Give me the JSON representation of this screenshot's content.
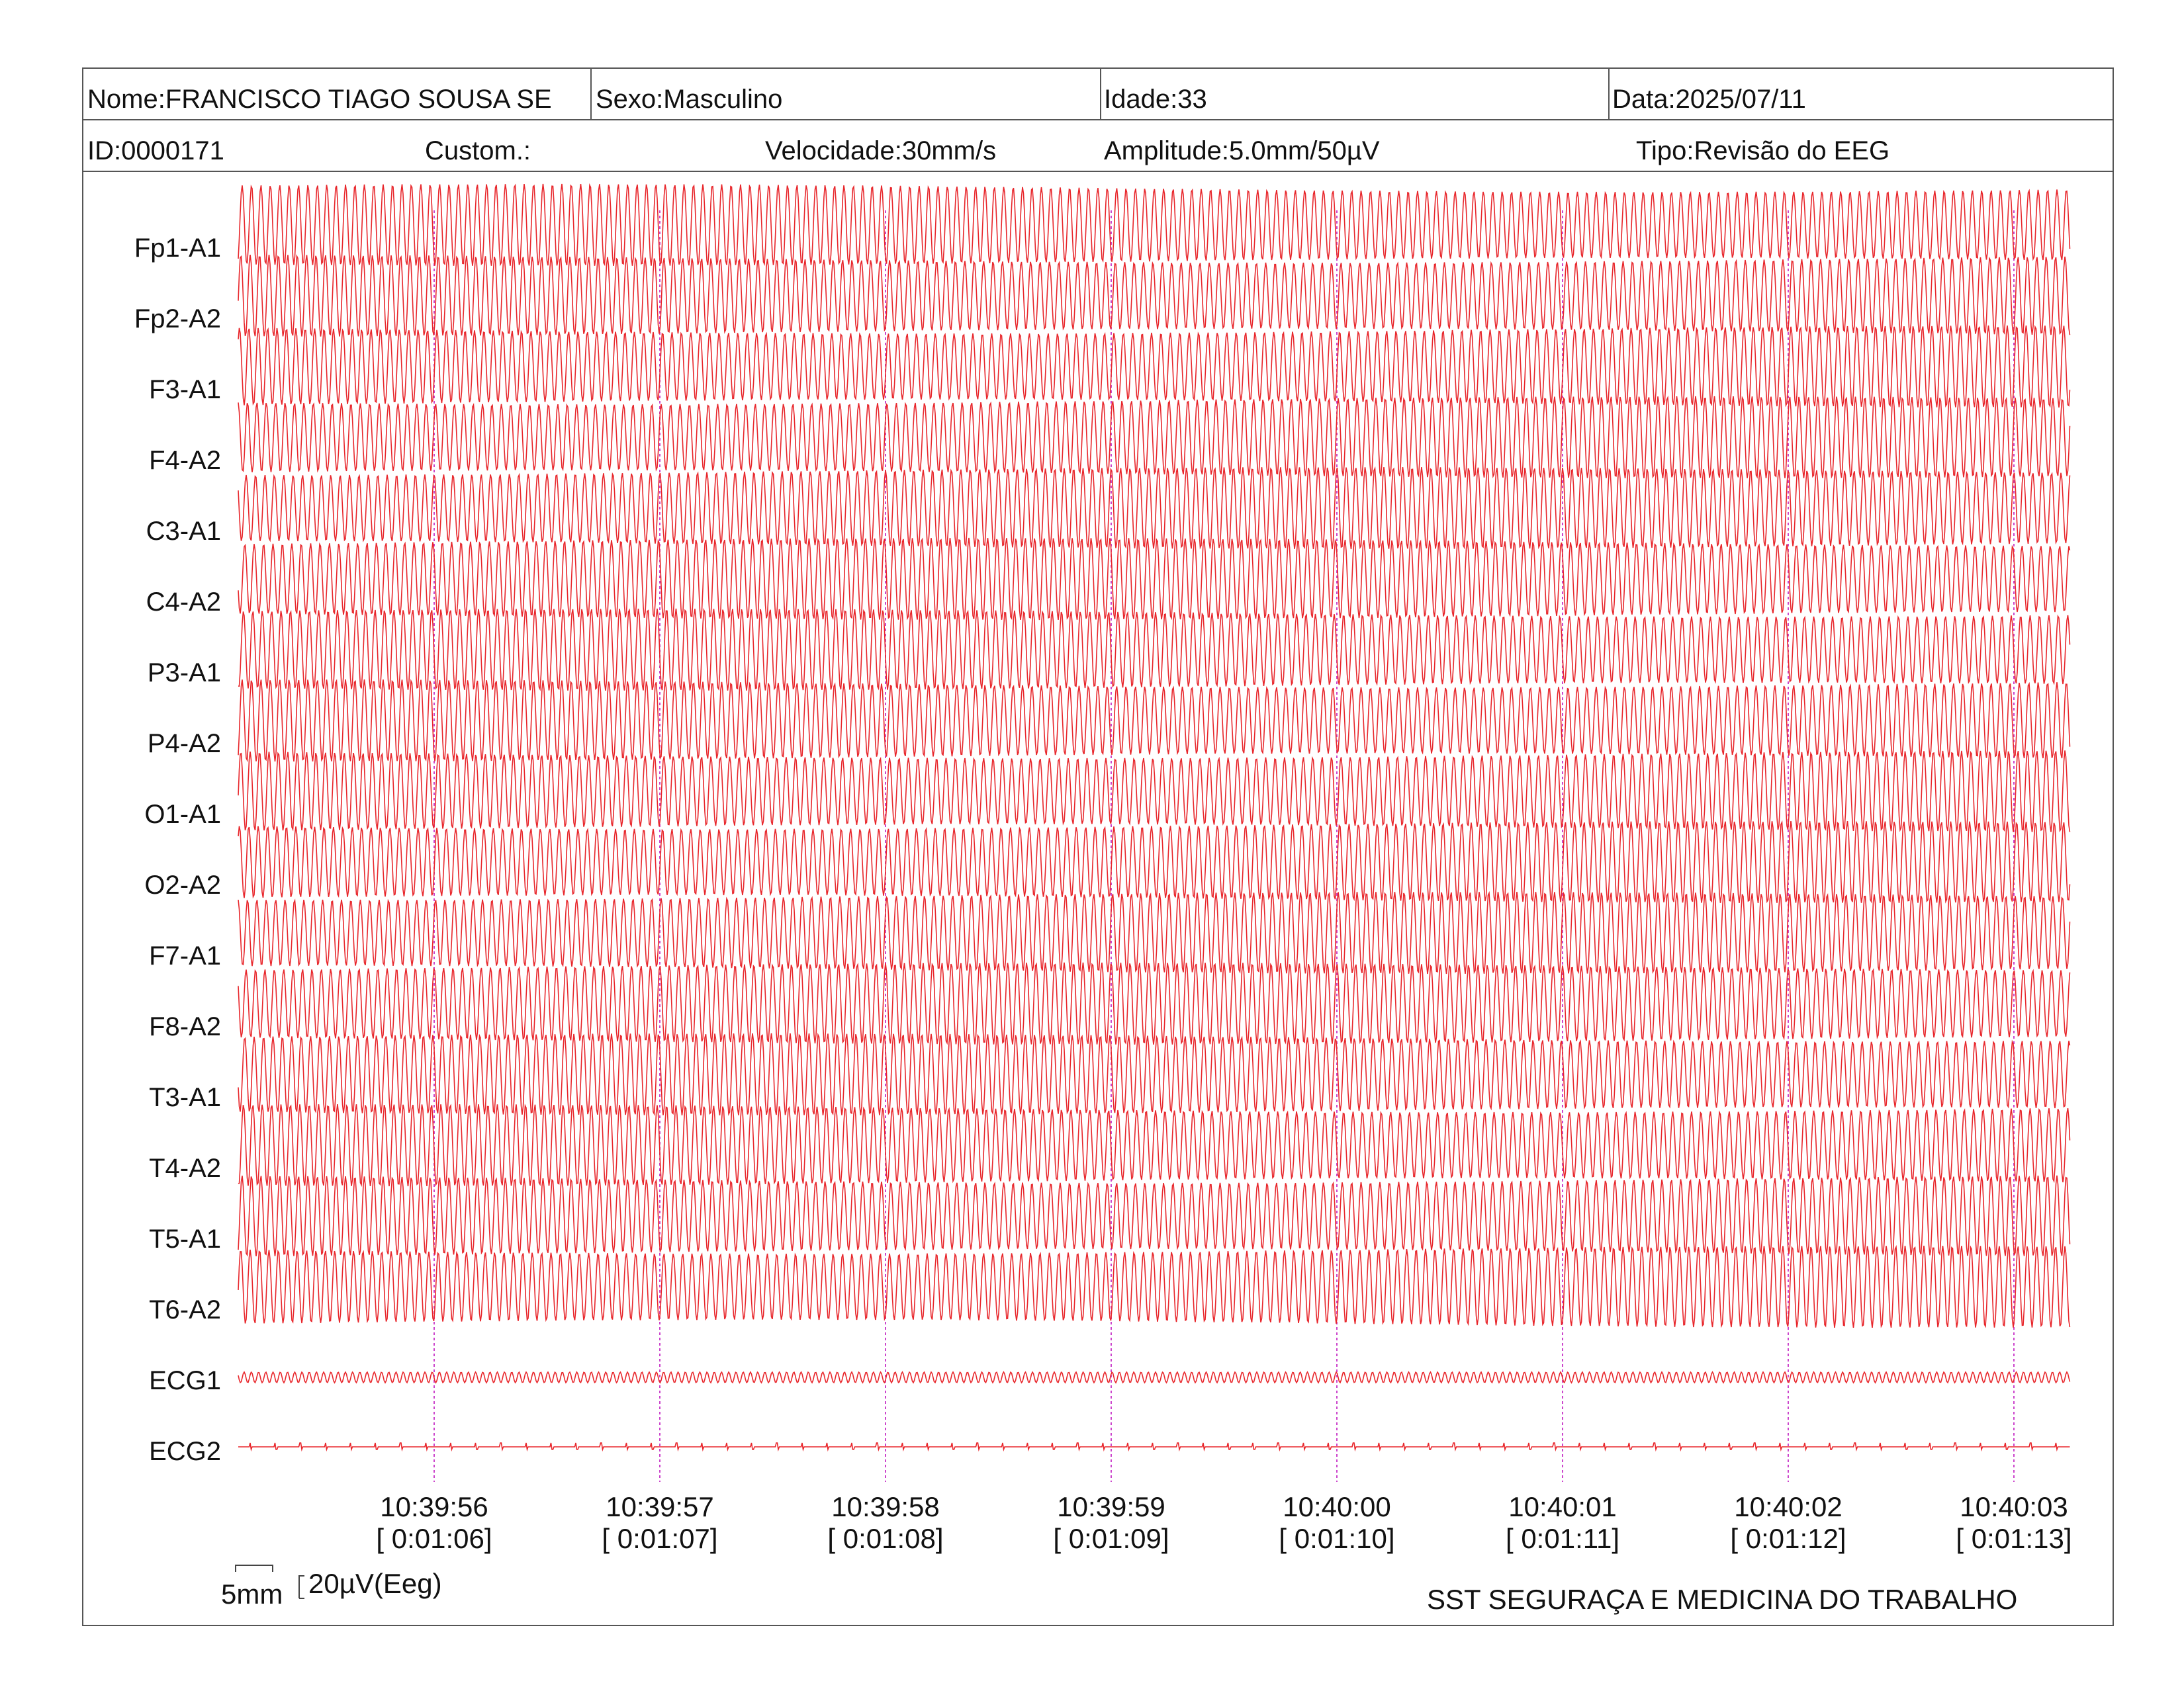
{
  "header": {
    "nome": "Nome:FRANCISCO TIAGO SOUSA SE",
    "sexo": "Sexo:Masculino",
    "idade": "Idade:33",
    "data": "Data:2025/07/11",
    "id": "ID:0000171",
    "custom": "Custom.:",
    "velocidade": "Velocidade:30mm/s",
    "amplitude": "Amplitude:5.0mm/50µV",
    "tipo": "Tipo:Revisão do EEG"
  },
  "footer": {
    "scale_time": "5mm",
    "scale_amp": "20µV(Eeg)",
    "company": "SST SEGURAÇA E MEDICINA DO TRABALHO"
  },
  "colors": {
    "trace": "#e8262b",
    "time_marker": "#cc44cc",
    "border": "#555555"
  },
  "chart_data": {
    "type": "line",
    "channels": [
      "Fp1-A1",
      "Fp2-A2",
      "F3-A1",
      "F4-A2",
      "C3-A1",
      "C4-A2",
      "P3-A1",
      "P4-A2",
      "O1-A1",
      "O2-A2",
      "F7-A1",
      "F8-A2",
      "T3-A1",
      "T4-A2",
      "T5-A1",
      "T6-A2",
      "ECG1",
      "ECG2"
    ],
    "time_labels": [
      {
        "clock": "10:39:56",
        "elapsed": "[ 0:01:06]"
      },
      {
        "clock": "10:39:57",
        "elapsed": "[ 0:01:07]"
      },
      {
        "clock": "10:39:58",
        "elapsed": "[ 0:01:08]"
      },
      {
        "clock": "10:39:59",
        "elapsed": "[ 0:01:09]"
      },
      {
        "clock": "10:40:00",
        "elapsed": "[ 0:01:10]"
      },
      {
        "clock": "10:40:01",
        "elapsed": "[ 0:01:11]"
      },
      {
        "clock": "10:40:02",
        "elapsed": "[ 0:01:12]"
      },
      {
        "clock": "10:40:03",
        "elapsed": "[ 0:01:13]"
      }
    ],
    "eeg_cycles_per_second": 24,
    "ecg1_cycles_per_second": 13,
    "ecg2_beats_per_second": 9,
    "grid": false
  }
}
